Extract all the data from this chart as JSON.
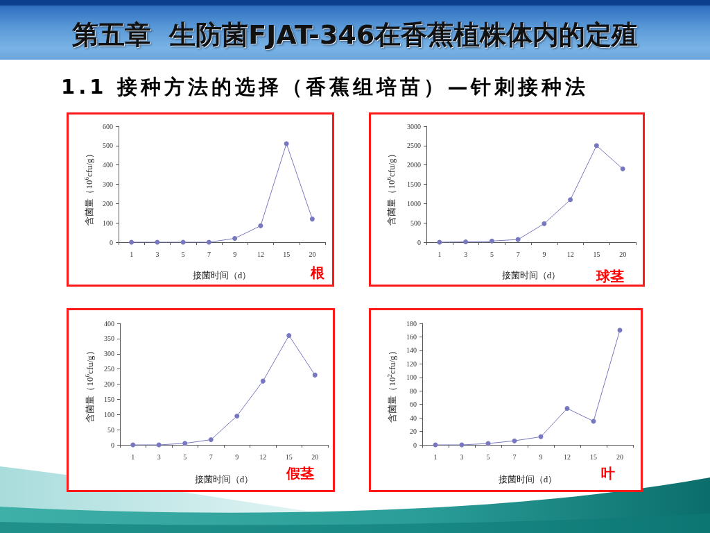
{
  "chart_data": [
    {
      "type": "other",
      "title": "第五章  生防菌FJAT-346在香蕉植株体内的定殖",
      "subtitle": "1.1 接种方法的选择（香蕉组培苗）—针刺接种法"
    },
    {
      "type": "line",
      "title": "根",
      "xlabel": "接菌时间（d）",
      "ylabel": "含菌量（10$^{6}$cfu/g）",
      "categories": [
        "1",
        "3",
        "5",
        "7",
        "9",
        "12",
        "15",
        "20"
      ],
      "values": [
        0,
        0,
        0,
        0,
        20,
        85,
        510,
        120
      ],
      "color": "#7878c0",
      "ylim": [
        0,
        600
      ],
      "yticks": [
        0,
        100,
        200,
        300,
        400,
        500,
        600
      ],
      "marker": "circle"
    },
    {
      "type": "line",
      "title": "球茎",
      "xlabel": "接菌时间（d）",
      "ylabel": "含菌量（10$^{6}$cfu/g）",
      "categories": [
        "1",
        "3",
        "5",
        "7",
        "9",
        "12",
        "15",
        "20"
      ],
      "values": [
        0,
        10,
        30,
        70,
        480,
        1100,
        2500,
        1900
      ],
      "color": "#7878c0",
      "ylim": [
        0,
        3000
      ],
      "yticks": [
        0,
        500,
        1000,
        1500,
        2000,
        2500,
        3000
      ],
      "marker": "circle"
    },
    {
      "type": "line",
      "title": "假茎",
      "xlabel": "接菌时间（d）",
      "ylabel": "含菌量（10$^{6}$cfu/g）",
      "categories": [
        "1",
        "3",
        "5",
        "7",
        "9",
        "12",
        "15",
        "20"
      ],
      "values": [
        0,
        0,
        5,
        17,
        95,
        210,
        360,
        230
      ],
      "color": "#7878c0",
      "ylim": [
        0,
        400
      ],
      "yticks": [
        0,
        50,
        100,
        150,
        200,
        250,
        300,
        350,
        400
      ],
      "marker": "circle"
    },
    {
      "type": "line",
      "title": "叶",
      "xlabel": "接菌时间（d）",
      "ylabel": "含菌量（10$^{2}$cfu/g）",
      "categories": [
        "1",
        "3",
        "5",
        "7",
        "9",
        "12",
        "15",
        "20"
      ],
      "values": [
        0,
        0,
        2,
        6,
        12,
        54,
        35,
        170
      ],
      "color": "#7878c0",
      "ylim": [
        0,
        180
      ],
      "yticks": [
        0,
        20,
        40,
        60,
        80,
        100,
        120,
        140,
        160,
        180
      ],
      "marker": "circle"
    }
  ]
}
